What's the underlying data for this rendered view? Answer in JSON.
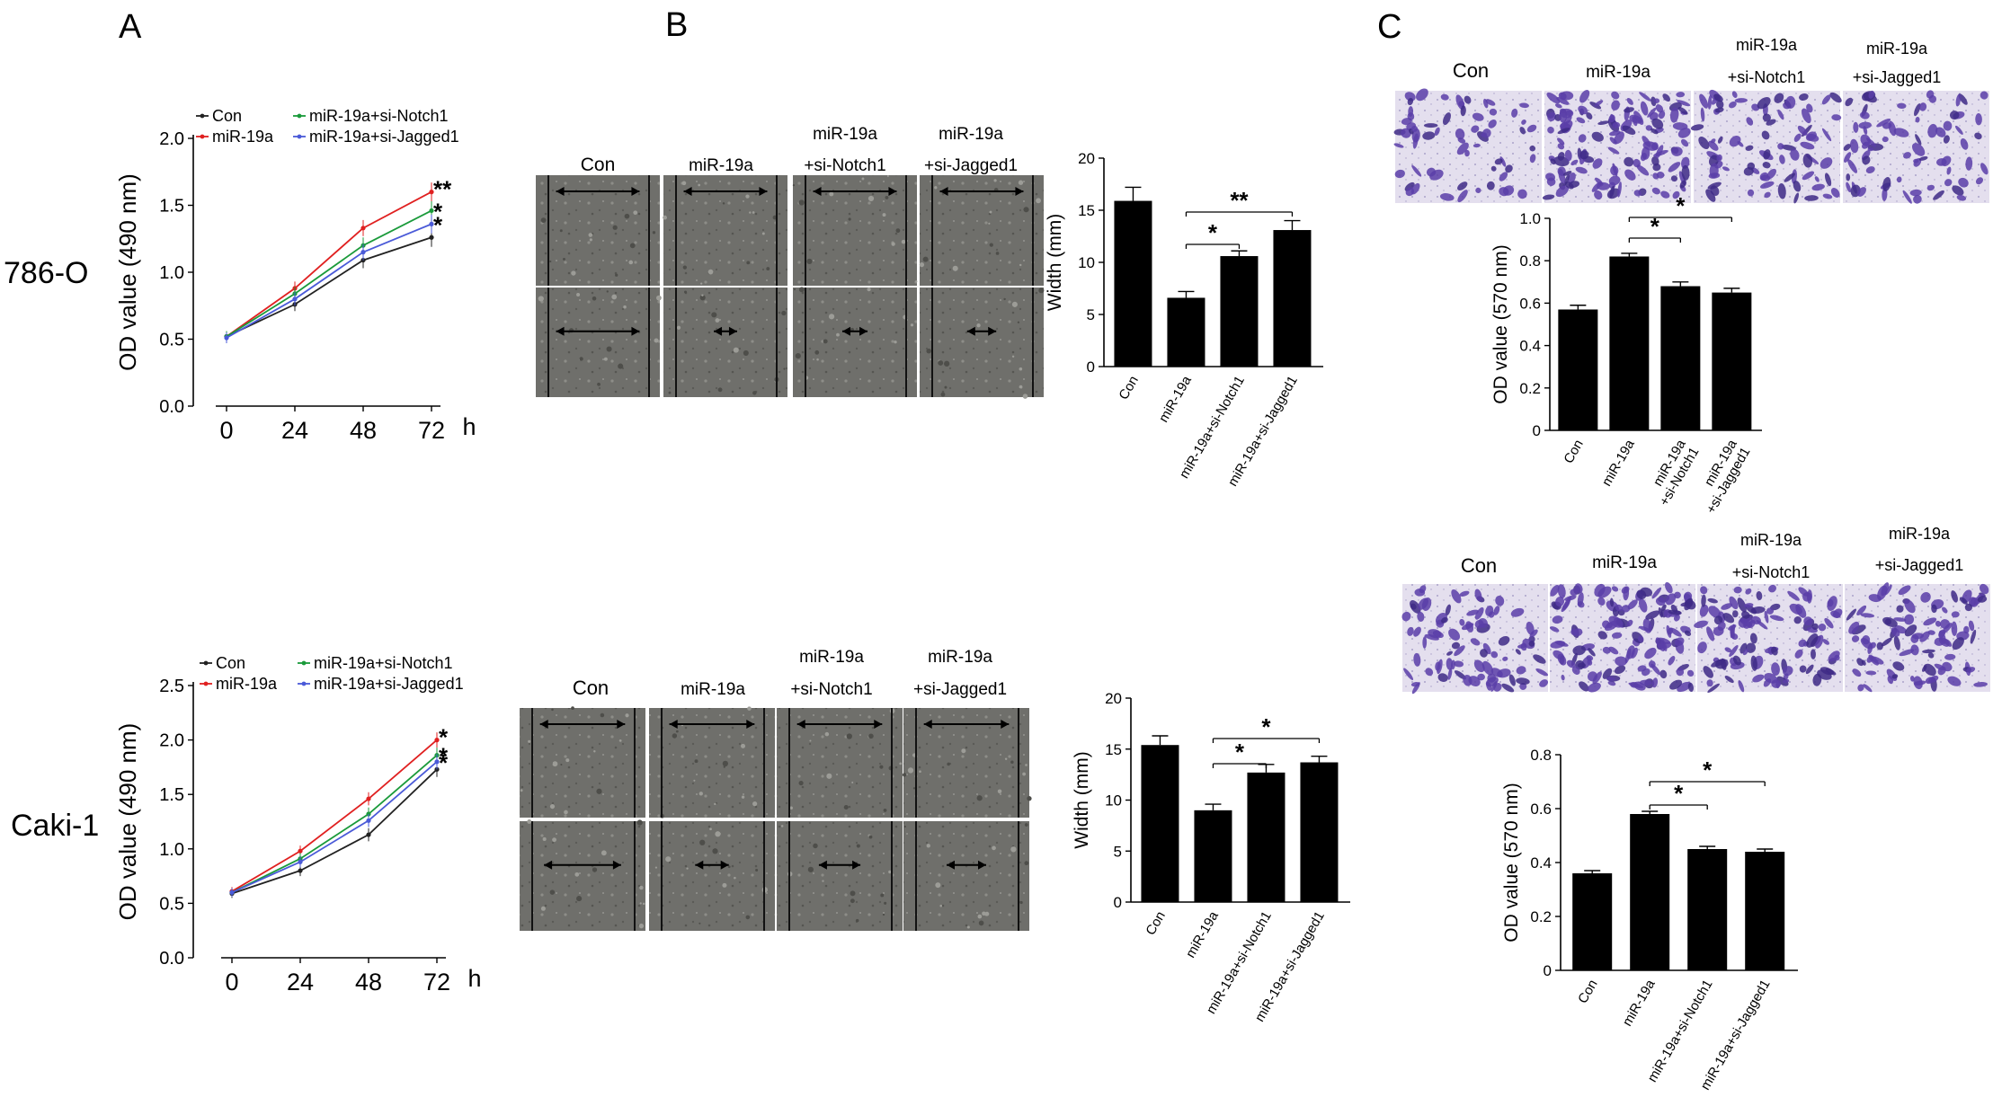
{
  "panels": {
    "A": "A",
    "B": "B",
    "C": "C"
  },
  "rows": {
    "top": "786-O",
    "bottom": "Caki-1"
  },
  "groups": {
    "con": "Con",
    "mir": "miR-19a",
    "mir_line1": "miR-19a",
    "notch_line2": "+si-Notch1",
    "jagged_line2": "+si-Jagged1",
    "notch_full": "miR-19a+si-Notch1",
    "jagged_full": "miR-19a+si-Jagged1"
  },
  "chart_data": [
    {
      "type": "line",
      "panel": "A",
      "row": "786-O",
      "ylabel": "OD value (490 nm)",
      "x": [
        0,
        24,
        48,
        72
      ],
      "x_unit": "h",
      "ylim": [
        0,
        2.0
      ],
      "yticks": [
        "0.0",
        "0.5",
        "1.0",
        "1.5",
        "2.0"
      ],
      "xticks": [
        "0",
        "24",
        "48",
        "72"
      ],
      "series": [
        {
          "name": "Con",
          "color": "#222222",
          "values": [
            0.52,
            0.76,
            1.09,
            1.26
          ]
        },
        {
          "name": "miR-19a",
          "color": "#e02020",
          "values": [
            0.52,
            0.88,
            1.33,
            1.6
          ]
        },
        {
          "name": "miR-19a+si-Notch1",
          "color": "#1a9a3a",
          "values": [
            0.52,
            0.84,
            1.2,
            1.46
          ]
        },
        {
          "name": "miR-19a+si-Jagged1",
          "color": "#4a5ad8",
          "values": [
            0.51,
            0.8,
            1.15,
            1.36
          ]
        }
      ],
      "significance": [
        "**",
        "*",
        "*"
      ],
      "legend_position": "top"
    },
    {
      "type": "line",
      "panel": "A",
      "row": "Caki-1",
      "ylabel": "OD value (490 nm)",
      "x": [
        0,
        24,
        48,
        72
      ],
      "x_unit": "h",
      "ylim": [
        0,
        2.5
      ],
      "yticks": [
        "0.0",
        "0.5",
        "1.0",
        "1.5",
        "2.0",
        "2.5"
      ],
      "xticks": [
        "0",
        "24",
        "48",
        "72"
      ],
      "series": [
        {
          "name": "Con",
          "color": "#222222",
          "values": [
            0.59,
            0.8,
            1.13,
            1.73
          ]
        },
        {
          "name": "miR-19a",
          "color": "#e02020",
          "values": [
            0.61,
            0.98,
            1.46,
            2.0
          ]
        },
        {
          "name": "miR-19a+si-Notch1",
          "color": "#1a9a3a",
          "values": [
            0.6,
            0.91,
            1.32,
            1.86
          ]
        },
        {
          "name": "miR-19a+si-Jagged1",
          "color": "#4a5ad8",
          "values": [
            0.6,
            0.88,
            1.26,
            1.8
          ]
        }
      ],
      "significance": [
        "*",
        "*",
        "*"
      ],
      "legend_position": "top"
    },
    {
      "type": "bar",
      "panel": "B",
      "row": "786-O",
      "ylabel": "Width (mm)",
      "ylim": [
        0,
        20
      ],
      "yticks": [
        "0",
        "5",
        "10",
        "15",
        "20"
      ],
      "categories": [
        "Con",
        "miR-19a",
        "miR-19a+si-Notch1",
        "miR-19a+si-Jagged1"
      ],
      "values": [
        15.9,
        6.6,
        10.6,
        13.1
      ],
      "errors": [
        1.3,
        0.6,
        0.5,
        0.9
      ],
      "brackets": [
        {
          "from": 1,
          "to": 2,
          "label": "*"
        },
        {
          "from": 1,
          "to": 3,
          "label": "**"
        }
      ]
    },
    {
      "type": "bar",
      "panel": "B",
      "row": "Caki-1",
      "ylabel": "Width (mm)",
      "ylim": [
        0,
        20
      ],
      "yticks": [
        "0",
        "5",
        "10",
        "15",
        "20"
      ],
      "categories": [
        "Con",
        "miR-19a",
        "miR-19a+si-Notch1",
        "miR-19a+si-Jagged1"
      ],
      "values": [
        15.4,
        9.0,
        12.7,
        13.7
      ],
      "errors": [
        0.9,
        0.6,
        0.8,
        0.6
      ],
      "brackets": [
        {
          "from": 1,
          "to": 2,
          "label": "*"
        },
        {
          "from": 1,
          "to": 3,
          "label": "*"
        }
      ]
    },
    {
      "type": "bar",
      "panel": "C",
      "row": "786-O",
      "ylabel": "OD value (570 nm)",
      "ylim": [
        0,
        1.0
      ],
      "yticks": [
        "0",
        "0.2",
        "0.4",
        "0.6",
        "0.8",
        "1.0"
      ],
      "categories": [
        "Con",
        "miR-19a",
        "miR-19a\n+si-Notch1",
        "miR-19a\n+si-Jagged1"
      ],
      "values": [
        0.57,
        0.82,
        0.68,
        0.65
      ],
      "errors": [
        0.02,
        0.015,
        0.02,
        0.02
      ],
      "brackets": [
        {
          "from": 1,
          "to": 2,
          "label": "*"
        },
        {
          "from": 1,
          "to": 3,
          "label": "*"
        }
      ]
    },
    {
      "type": "bar",
      "panel": "C",
      "row": "Caki-1",
      "ylabel": "OD value (570 nm)",
      "ylim": [
        0,
        0.8
      ],
      "yticks": [
        "0",
        "0.2",
        "0.4",
        "0.6",
        "0.8"
      ],
      "categories": [
        "Con",
        "miR-19a",
        "miR-19a+si-Notch1",
        "miR-19a+si-Jagged1"
      ],
      "values": [
        0.36,
        0.58,
        0.45,
        0.44
      ],
      "errors": [
        0.01,
        0.01,
        0.01,
        0.01
      ],
      "brackets": [
        {
          "from": 1,
          "to": 2,
          "label": "*"
        },
        {
          "from": 1,
          "to": 3,
          "label": "*"
        }
      ]
    }
  ],
  "scratch_gaps_786O": [
    0.86,
    0.24,
    0.26,
    0.3
  ],
  "scratch_gaps_caki": [
    0.78,
    0.34,
    0.42,
    0.4
  ],
  "transwell_density": [
    0.35,
    1.0,
    0.55,
    0.45
  ],
  "transwell_density_caki": [
    0.55,
    1.0,
    0.75,
    0.65
  ],
  "colors": {
    "stain": "#5a3ea8",
    "stain_bg": "#dcd6ec",
    "phase_bg": "#6f6f6b",
    "bar": "#000000"
  }
}
